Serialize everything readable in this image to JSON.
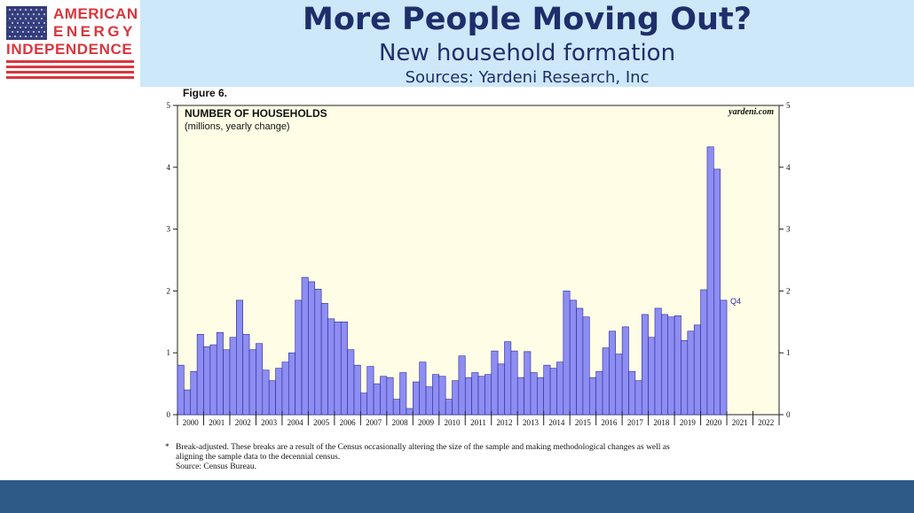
{
  "logo": {
    "line1": "AMERICAN",
    "line2": "ENERGY",
    "line3": "INDEPENDENCE"
  },
  "banner": {
    "title": "More People Moving Out?",
    "subtitle": "New household formation",
    "sources": "Sources: Yardeni Research, Inc"
  },
  "colors": {
    "banner_bg": "#cde8f9",
    "title_text": "#1e2e6a",
    "logo_red": "#d9363e",
    "plot_bg": "#fffde6",
    "bar_fill": "#8d8df2",
    "bar_stroke": "#2a2a9a",
    "footer_bar": "#2e5a88"
  },
  "chart_data": {
    "type": "bar",
    "figure_label": "Figure 6.",
    "title": "NUMBER OF HOUSEHOLDS",
    "subtitle": "(millions, yearly change)",
    "watermark": "yardeni.com",
    "annotation": "Q4",
    "ylim": [
      0,
      5
    ],
    "yticks": [
      "0",
      "1",
      "2",
      "3",
      "4",
      "5"
    ],
    "years": [
      "2000",
      "2001",
      "2002",
      "2003",
      "2004",
      "2005",
      "2006",
      "2007",
      "2008",
      "2009",
      "2010",
      "2011",
      "2012",
      "2013",
      "2014",
      "2015",
      "2016",
      "2017",
      "2018",
      "2019",
      "2020",
      "2021",
      "2022"
    ],
    "x_start": 2000,
    "quarters_per_year": 4,
    "values": [
      0.8,
      0.4,
      0.7,
      1.3,
      1.1,
      1.13,
      1.33,
      1.05,
      1.25,
      1.85,
      1.3,
      1.05,
      1.15,
      0.72,
      0.55,
      0.75,
      0.85,
      1.0,
      1.85,
      2.22,
      2.15,
      2.03,
      1.8,
      1.55,
      1.5,
      1.5,
      1.05,
      0.8,
      0.35,
      0.78,
      0.5,
      0.62,
      0.6,
      0.25,
      0.68,
      0.1,
      0.53,
      0.85,
      0.45,
      0.65,
      0.62,
      0.25,
      0.55,
      0.95,
      0.6,
      0.68,
      0.62,
      0.65,
      1.03,
      0.82,
      1.18,
      1.03,
      0.6,
      1.02,
      0.68,
      0.6,
      0.8,
      0.75,
      0.85,
      2.0,
      1.85,
      1.72,
      1.58,
      0.6,
      0.7,
      1.08,
      1.35,
      0.98,
      1.42,
      0.7,
      0.55,
      1.62,
      1.25,
      1.72,
      1.62,
      1.58,
      1.6,
      1.2,
      1.35,
      1.45,
      2.02,
      4.33,
      3.97,
      1.85
    ],
    "footnote": {
      "marker": "*",
      "lines": [
        "Break-adjusted. These breaks are a result of the Census occasionally altering the size of the sample and making methodological changes as well as",
        "aligning the sample data to the decennial census."
      ],
      "source": "Source: Census Bureau."
    }
  }
}
